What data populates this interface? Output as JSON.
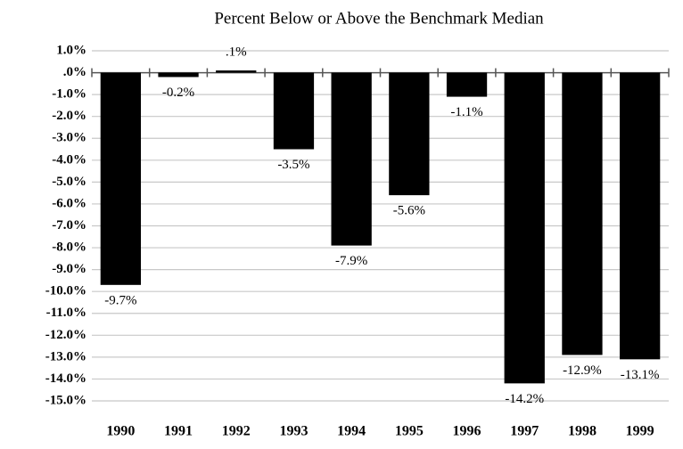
{
  "chart_data": {
    "type": "bar",
    "title": "Percent Below or Above the Benchmark Median",
    "categories": [
      "1990",
      "1991",
      "1992",
      "1993",
      "1994",
      "1995",
      "1996",
      "1997",
      "1998",
      "1999"
    ],
    "values": [
      -9.7,
      -0.2,
      0.1,
      -3.5,
      -7.9,
      -5.6,
      -1.1,
      -14.2,
      -12.9,
      -13.1
    ],
    "value_labels": [
      "-9.7%",
      "-0.2%",
      ".1%",
      "-3.5%",
      "-7.9%",
      "-5.6%",
      "-1.1%",
      "-14.2%",
      "-12.9%",
      "-13.1%"
    ],
    "color": "#000000",
    "ylim": [
      -15,
      1
    ],
    "yticks": [
      {
        "value": 1,
        "label": "1.0%"
      },
      {
        "value": 0,
        "label": ".0%"
      },
      {
        "value": -1,
        "label": "-1.0%"
      },
      {
        "value": -2,
        "label": "-2.0%"
      },
      {
        "value": -3,
        "label": "-3.0%"
      },
      {
        "value": -4,
        "label": "-4.0%"
      },
      {
        "value": -5,
        "label": "-5.0%"
      },
      {
        "value": -6,
        "label": "-6.0%"
      },
      {
        "value": -7,
        "label": "-7.0%"
      },
      {
        "value": -8,
        "label": "-8.0%"
      },
      {
        "value": -9,
        "label": "-9.0%"
      },
      {
        "value": -10,
        "label": "-10.0%"
      },
      {
        "value": -11,
        "label": "-11.0%"
      },
      {
        "value": -12,
        "label": "-12.0%"
      },
      {
        "value": -13,
        "label": "-13.0%"
      },
      {
        "value": -14,
        "label": "-14.0%"
      },
      {
        "value": -15,
        "label": "-15.0%"
      }
    ],
    "grid": true
  }
}
